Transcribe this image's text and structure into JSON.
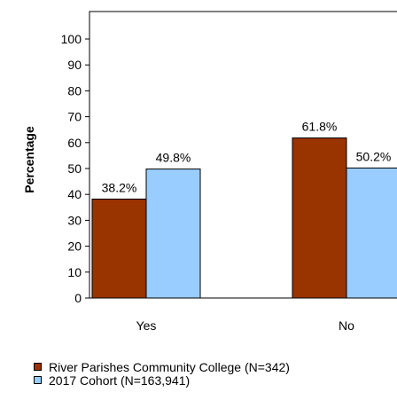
{
  "chart_data": {
    "type": "bar",
    "title": "",
    "xlabel": "",
    "ylabel": "Percentage",
    "ylim": [
      0,
      100
    ],
    "yticks": [
      0,
      10,
      20,
      30,
      40,
      50,
      60,
      70,
      80,
      90,
      100
    ],
    "categories": [
      "Yes",
      "No"
    ],
    "series": [
      {
        "name": "River Parishes Community College (N=342)",
        "values": [
          38.2,
          61.8
        ],
        "labels": [
          "38.2%",
          "61.8%"
        ],
        "color": "#993300"
      },
      {
        "name": "2017 Cohort (N=163,941)",
        "values": [
          49.8,
          50.2
        ],
        "labels": [
          "49.8%",
          "50.2%"
        ],
        "color": "#99CCFF"
      }
    ],
    "grid": false,
    "legend_position": "bottom-left"
  }
}
